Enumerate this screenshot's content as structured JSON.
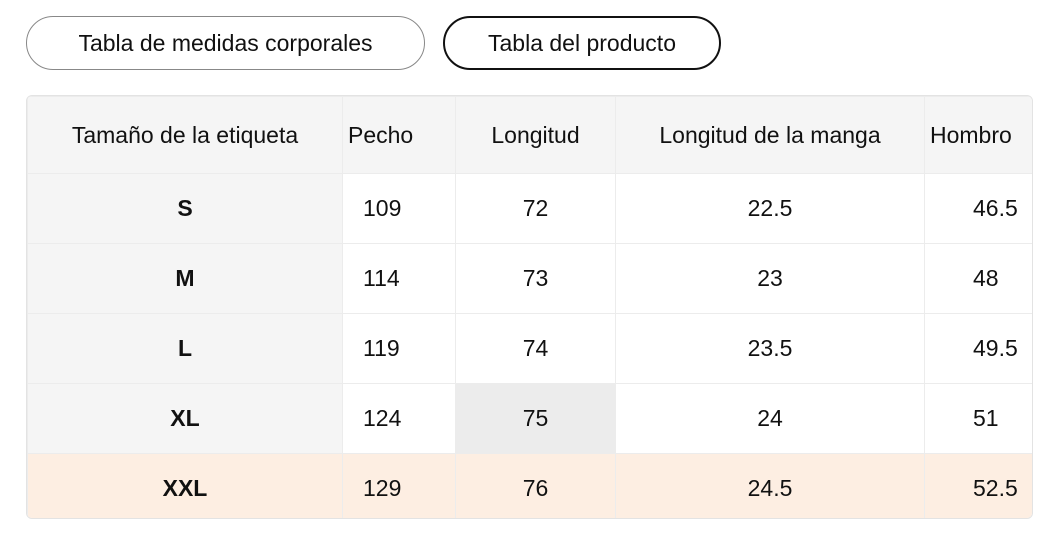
{
  "tabs": [
    "Tabla de medidas corporales",
    "Tabla del producto"
  ],
  "table": {
    "header": [
      "Tamaño de la etiqueta",
      "Pecho",
      "Longitud",
      "Longitud de la manga",
      "Hombro"
    ],
    "rows": [
      [
        "S",
        "109",
        "72",
        "22.5",
        "46.5"
      ],
      [
        "M",
        "114",
        "73",
        "23",
        "48"
      ],
      [
        "L",
        "119",
        "74",
        "23.5",
        "49.5"
      ],
      [
        "XL",
        "124",
        "75",
        "24",
        "51"
      ],
      [
        "XXL",
        "129",
        "76",
        "24.5",
        "52.5"
      ]
    ]
  }
}
